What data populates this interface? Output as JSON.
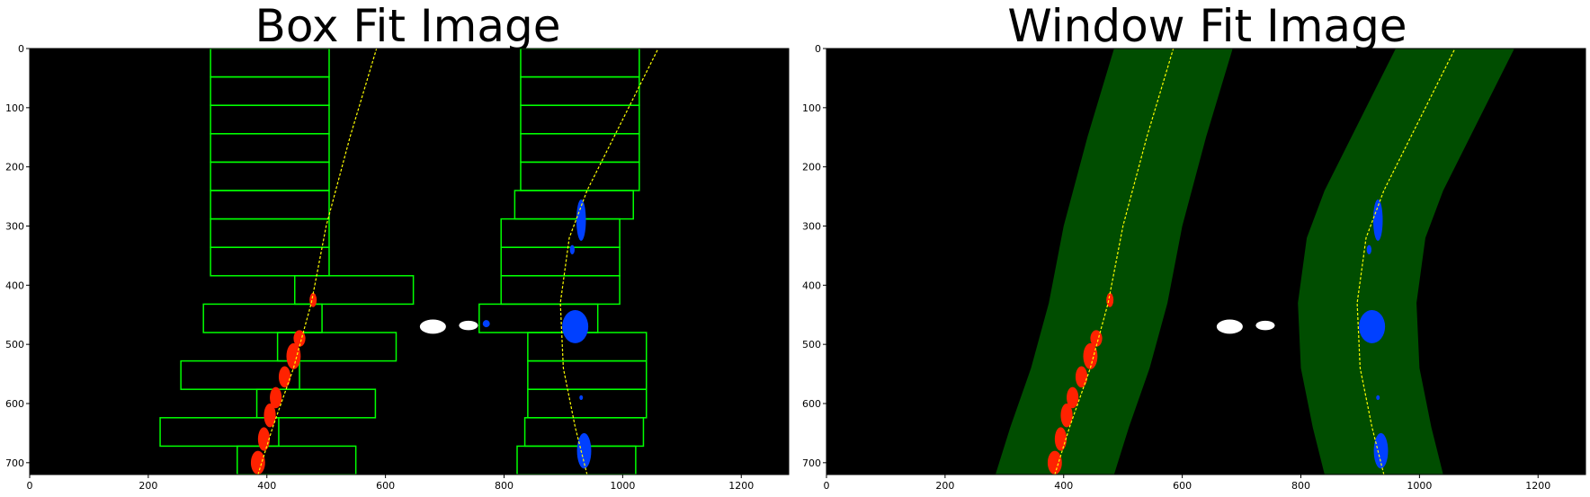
{
  "colors": {
    "background": "#000000",
    "box": "#00ff00",
    "window_band": "#004d00",
    "fit_line": "#ffff00",
    "left_lane_pixels": "#ff2200",
    "right_lane_pixels": "#0040ff",
    "other_pixels": "#ffffff"
  },
  "chart_data": [
    {
      "type": "scatter",
      "title": "Box Fit Image",
      "xlim": [
        0,
        1280
      ],
      "ylim": [
        720,
        0
      ],
      "x_ticks": [
        "0",
        "200",
        "400",
        "600",
        "800",
        "1000",
        "1200"
      ],
      "y_ticks": [
        "0",
        "100",
        "200",
        "300",
        "400",
        "500",
        "600",
        "700"
      ],
      "fit_lines": [
        {
          "points": [
            [
              385,
              720
            ],
            [
              410,
              640
            ],
            [
              445,
              540
            ],
            [
              475,
              430
            ],
            [
              500,
              300
            ],
            [
              540,
              150
            ],
            [
              585,
              0
            ]
          ]
        },
        {
          "points": [
            [
              940,
              720
            ],
            [
              920,
              640
            ],
            [
              900,
              540
            ],
            [
              895,
              430
            ],
            [
              910,
              320
            ],
            [
              940,
              240
            ],
            [
              1000,
              120
            ],
            [
              1060,
              0
            ]
          ]
        }
      ],
      "boxes": [
        {
          "x0": 305,
          "x1": 505,
          "y0": 0,
          "y1": 48
        },
        {
          "x0": 305,
          "x1": 505,
          "y0": 48,
          "y1": 96
        },
        {
          "x0": 305,
          "x1": 505,
          "y0": 96,
          "y1": 144
        },
        {
          "x0": 305,
          "x1": 505,
          "y0": 144,
          "y1": 192
        },
        {
          "x0": 305,
          "x1": 505,
          "y0": 192,
          "y1": 240
        },
        {
          "x0": 305,
          "x1": 505,
          "y0": 240,
          "y1": 288
        },
        {
          "x0": 305,
          "x1": 505,
          "y0": 288,
          "y1": 336
        },
        {
          "x0": 305,
          "x1": 505,
          "y0": 336,
          "y1": 384
        },
        {
          "x0": 447,
          "x1": 647,
          "y0": 384,
          "y1": 432
        },
        {
          "x0": 293,
          "x1": 493,
          "y0": 432,
          "y1": 480
        },
        {
          "x0": 418,
          "x1": 618,
          "y0": 480,
          "y1": 528
        },
        {
          "x0": 255,
          "x1": 455,
          "y0": 528,
          "y1": 576
        },
        {
          "x0": 383,
          "x1": 583,
          "y0": 576,
          "y1": 624
        },
        {
          "x0": 220,
          "x1": 420,
          "y0": 624,
          "y1": 672
        },
        {
          "x0": 350,
          "x1": 550,
          "y0": 672,
          "y1": 720
        },
        {
          "x0": 828,
          "x1": 1028,
          "y0": 0,
          "y1": 48
        },
        {
          "x0": 828,
          "x1": 1028,
          "y0": 48,
          "y1": 96
        },
        {
          "x0": 828,
          "x1": 1028,
          "y0": 96,
          "y1": 144
        },
        {
          "x0": 828,
          "x1": 1028,
          "y0": 144,
          "y1": 192
        },
        {
          "x0": 828,
          "x1": 1028,
          "y0": 192,
          "y1": 240
        },
        {
          "x0": 818,
          "x1": 1018,
          "y0": 240,
          "y1": 288
        },
        {
          "x0": 795,
          "x1": 995,
          "y0": 288,
          "y1": 336
        },
        {
          "x0": 795,
          "x1": 995,
          "y0": 336,
          "y1": 384
        },
        {
          "x0": 795,
          "x1": 995,
          "y0": 384,
          "y1": 432
        },
        {
          "x0": 758,
          "x1": 958,
          "y0": 432,
          "y1": 480
        },
        {
          "x0": 840,
          "x1": 1040,
          "y0": 480,
          "y1": 528
        },
        {
          "x0": 840,
          "x1": 1040,
          "y0": 528,
          "y1": 576
        },
        {
          "x0": 840,
          "x1": 1040,
          "y0": 576,
          "y1": 624
        },
        {
          "x0": 835,
          "x1": 1035,
          "y0": 624,
          "y1": 672
        },
        {
          "x0": 822,
          "x1": 1022,
          "y0": 672,
          "y1": 720
        }
      ],
      "left_pixel_clusters": [
        {
          "x": 385,
          "y": 700,
          "rx": 12,
          "ry": 20
        },
        {
          "x": 395,
          "y": 660,
          "rx": 10,
          "ry": 20
        },
        {
          "x": 405,
          "y": 620,
          "rx": 10,
          "ry": 20
        },
        {
          "x": 415,
          "y": 590,
          "rx": 10,
          "ry": 18
        },
        {
          "x": 430,
          "y": 555,
          "rx": 10,
          "ry": 18
        },
        {
          "x": 445,
          "y": 520,
          "rx": 12,
          "ry": 22
        },
        {
          "x": 455,
          "y": 490,
          "rx": 10,
          "ry": 14
        },
        {
          "x": 478,
          "y": 425,
          "rx": 6,
          "ry": 12
        }
      ],
      "right_pixel_clusters": [
        {
          "x": 930,
          "y": 290,
          "rx": 8,
          "ry": 35
        },
        {
          "x": 920,
          "y": 470,
          "rx": 22,
          "ry": 28
        },
        {
          "x": 935,
          "y": 680,
          "rx": 12,
          "ry": 30
        },
        {
          "x": 915,
          "y": 340,
          "rx": 4,
          "ry": 8
        },
        {
          "x": 770,
          "y": 465,
          "rx": 6,
          "ry": 6
        },
        {
          "x": 930,
          "y": 590,
          "rx": 3,
          "ry": 4
        }
      ],
      "other_pixel_clusters": [
        {
          "x": 680,
          "y": 470,
          "rx": 22,
          "ry": 12
        },
        {
          "x": 740,
          "y": 468,
          "rx": 16,
          "ry": 8
        }
      ]
    },
    {
      "type": "scatter",
      "title": "Window Fit Image",
      "xlim": [
        0,
        1280
      ],
      "ylim": [
        720,
        0
      ],
      "x_ticks": [
        "0",
        "200",
        "400",
        "600",
        "800",
        "1000",
        "1200"
      ],
      "y_ticks": [
        "0",
        "100",
        "200",
        "300",
        "400",
        "500",
        "600",
        "700"
      ],
      "window_margin": 100,
      "fit_lines": [
        {
          "points": [
            [
              385,
              720
            ],
            [
              410,
              640
            ],
            [
              445,
              540
            ],
            [
              475,
              430
            ],
            [
              500,
              300
            ],
            [
              540,
              150
            ],
            [
              585,
              0
            ]
          ]
        },
        {
          "points": [
            [
              940,
              720
            ],
            [
              920,
              640
            ],
            [
              900,
              540
            ],
            [
              895,
              430
            ],
            [
              910,
              320
            ],
            [
              940,
              240
            ],
            [
              1000,
              120
            ],
            [
              1060,
              0
            ]
          ]
        }
      ],
      "left_pixel_clusters": [
        {
          "x": 385,
          "y": 700,
          "rx": 12,
          "ry": 20
        },
        {
          "x": 395,
          "y": 660,
          "rx": 10,
          "ry": 20
        },
        {
          "x": 405,
          "y": 620,
          "rx": 10,
          "ry": 20
        },
        {
          "x": 415,
          "y": 590,
          "rx": 10,
          "ry": 18
        },
        {
          "x": 430,
          "y": 555,
          "rx": 10,
          "ry": 18
        },
        {
          "x": 445,
          "y": 520,
          "rx": 12,
          "ry": 22
        },
        {
          "x": 455,
          "y": 490,
          "rx": 10,
          "ry": 14
        },
        {
          "x": 478,
          "y": 425,
          "rx": 6,
          "ry": 12
        }
      ],
      "right_pixel_clusters": [
        {
          "x": 930,
          "y": 290,
          "rx": 8,
          "ry": 35
        },
        {
          "x": 920,
          "y": 470,
          "rx": 22,
          "ry": 28
        },
        {
          "x": 935,
          "y": 680,
          "rx": 12,
          "ry": 30
        },
        {
          "x": 915,
          "y": 340,
          "rx": 4,
          "ry": 8
        },
        {
          "x": 930,
          "y": 590,
          "rx": 3,
          "ry": 4
        }
      ],
      "other_pixel_clusters": [
        {
          "x": 680,
          "y": 470,
          "rx": 22,
          "ry": 12
        },
        {
          "x": 740,
          "y": 468,
          "rx": 16,
          "ry": 8
        }
      ]
    }
  ]
}
